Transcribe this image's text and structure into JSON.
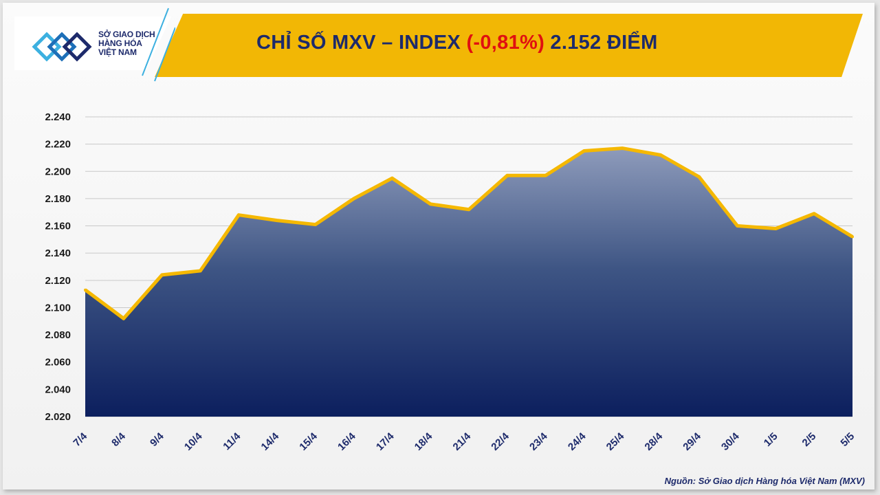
{
  "header": {
    "logo_line1": "SỞ GIAO DỊCH",
    "logo_line2": "HÀNG HÓA",
    "logo_line3": "VIỆT NAM",
    "title_prefix": "CHỈ SỐ MXV – INDEX ",
    "title_change": "(-0,81%)",
    "title_suffix": " 2.152 ĐIỂM"
  },
  "source": "Nguồn: Sở Giao dịch Hàng hóa Việt Nam (MXV)",
  "colors": {
    "band": "#f2b705",
    "navy": "#1d2a6b",
    "line": "#f5b800",
    "negative": "#e01010"
  },
  "chart_data": {
    "type": "area",
    "categories": [
      "7/4",
      "8/4",
      "9/4",
      "10/4",
      "11/4",
      "14/4",
      "15/4",
      "16/4",
      "17/4",
      "18/4",
      "21/4",
      "22/4",
      "23/4",
      "24/4",
      "25/4",
      "28/4",
      "29/4",
      "30/4",
      "1/5",
      "2/5",
      "5/5"
    ],
    "values": [
      2113,
      2092,
      2124,
      2127,
      2168,
      2164,
      2161,
      2180,
      2195,
      2176,
      2172,
      2197,
      2197,
      2215,
      2217,
      2212,
      2196,
      2160,
      2158,
      2169,
      2152
    ],
    "ylim": [
      2020,
      2240
    ],
    "yticks": [
      2020,
      2040,
      2060,
      2080,
      2100,
      2120,
      2140,
      2160,
      2180,
      2200,
      2220,
      2240
    ],
    "ytick_labels": [
      "2.020",
      "2.040",
      "2.060",
      "2.080",
      "2.100",
      "2.120",
      "2.140",
      "2.160",
      "2.180",
      "2.200",
      "2.220",
      "2.240"
    ],
    "grid": true
  }
}
